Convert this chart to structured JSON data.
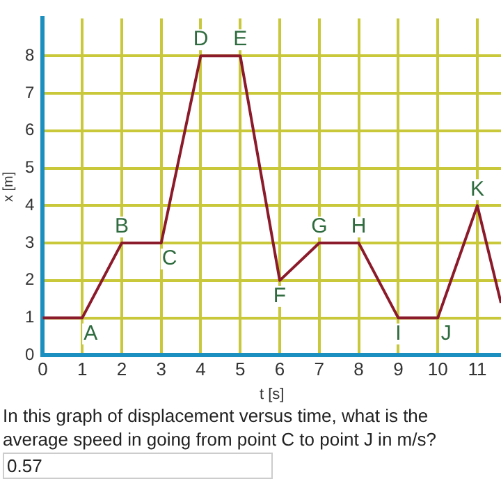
{
  "chart_data": {
    "type": "line",
    "xlabel": "t [s]",
    "ylabel": "x [m]",
    "x": [
      0,
      1,
      2,
      3,
      4,
      5,
      6,
      7,
      8,
      9,
      10,
      11,
      11.6
    ],
    "series": [
      {
        "color": "#8b1a2a",
        "values": [
          1,
          1,
          3,
          3,
          8,
          8,
          2,
          3,
          3,
          1,
          1,
          4,
          1.4
        ]
      }
    ],
    "xlim": [
      0,
      11.6
    ],
    "xticks": [
      0,
      1,
      2,
      3,
      4,
      5,
      6,
      7,
      8,
      9,
      10,
      11
    ],
    "ylim": [
      0,
      9
    ],
    "yticks": [
      0,
      1,
      2,
      3,
      4,
      5,
      6,
      7,
      8
    ],
    "grid": true,
    "legend": false,
    "marker": "none",
    "line_style": "solid",
    "annotations": [
      {
        "text": "A",
        "x": 1,
        "y": 1
      },
      {
        "text": "B",
        "x": 2,
        "y": 3
      },
      {
        "text": "C",
        "x": 3,
        "y": 3
      },
      {
        "text": "D",
        "x": 4,
        "y": 8
      },
      {
        "text": "E",
        "x": 5,
        "y": 8
      },
      {
        "text": "F",
        "x": 6,
        "y": 2
      },
      {
        "text": "G",
        "x": 7,
        "y": 3
      },
      {
        "text": "H",
        "x": 8,
        "y": 3
      },
      {
        "text": "I",
        "x": 9,
        "y": 1
      },
      {
        "text": "J",
        "x": 10,
        "y": 1
      },
      {
        "text": "K",
        "x": 11,
        "y": 4
      },
      "In this graph of displacement versus time, what is the average speed in going from point C to point J in m/s?",
      "0.57"
    ]
  }
}
